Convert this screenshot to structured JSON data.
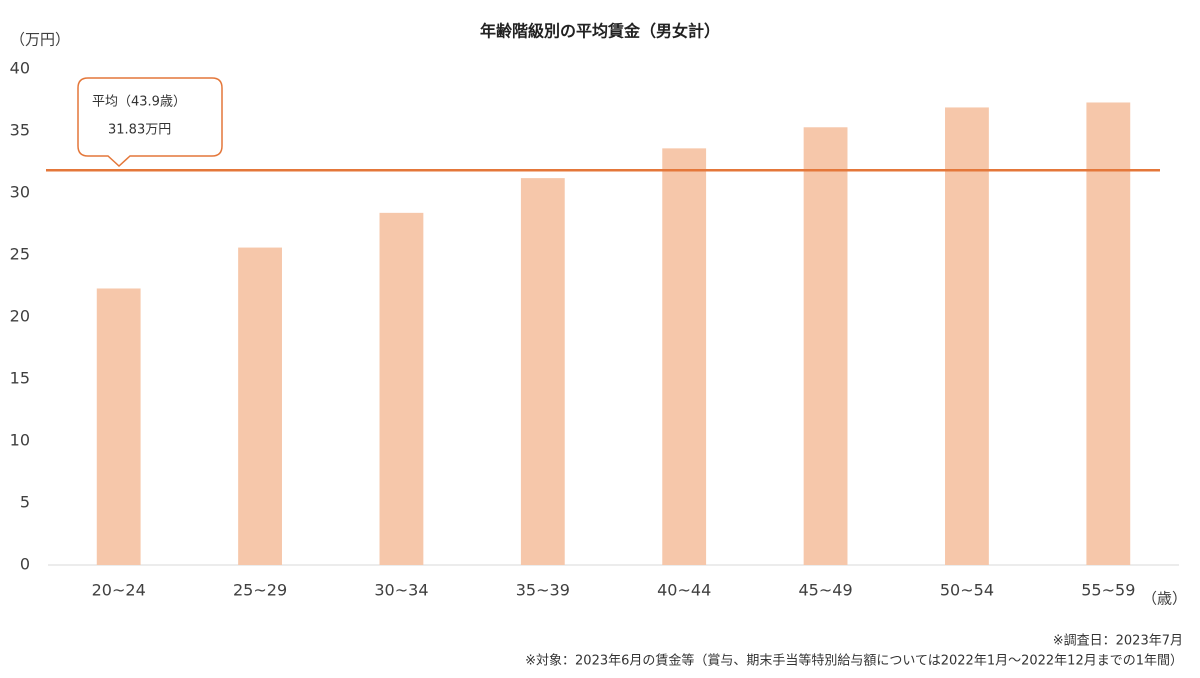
{
  "chart_data": {
    "type": "bar",
    "title": "年齢階級別の平均賃金（男女計）",
    "y_unit": "（万円）",
    "x_unit": "（歳）",
    "categories": [
      "20~24",
      "25~29",
      "30~34",
      "35~39",
      "40~44",
      "45~49",
      "50~54",
      "55~59"
    ],
    "values": [
      22.3,
      25.6,
      28.4,
      31.2,
      33.6,
      35.3,
      36.9,
      37.3
    ],
    "color": "#f6c7aa",
    "ylim": [
      0,
      40
    ],
    "yticks": [
      0,
      5,
      10,
      15,
      20,
      25,
      30,
      35,
      40
    ],
    "grid": false,
    "reference_line": {
      "value": 31.83,
      "name": "平均（43.9歳）",
      "label": "31.83万円",
      "color": "#e4773a"
    },
    "notes": [
      "※調査日：2023年7月",
      "※対象：2023年6月の賃金等（賞与、期末手当等特別給与額については2022年1月～2022年12月までの1年間）"
    ]
  }
}
